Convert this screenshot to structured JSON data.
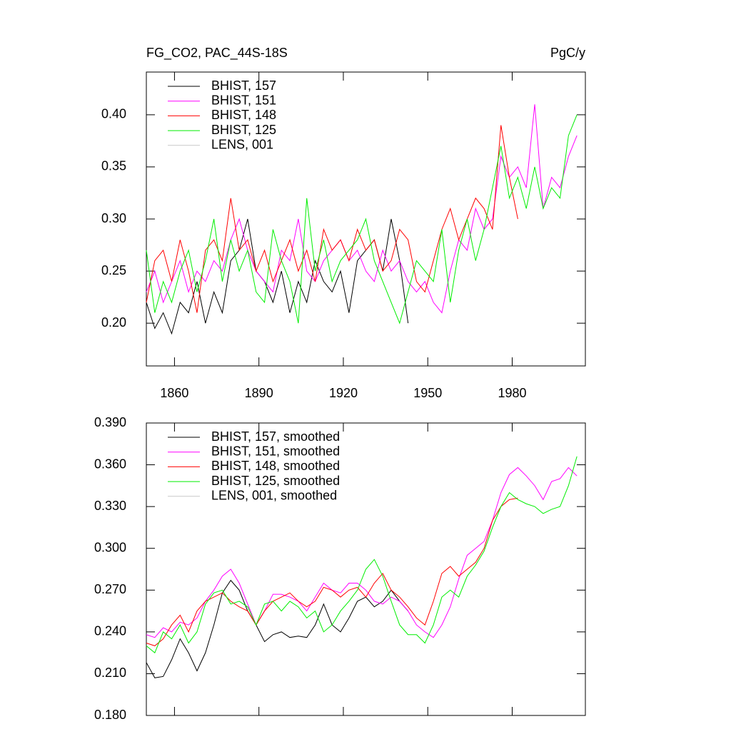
{
  "chart_data": [
    {
      "type": "line",
      "title": "FG_CO2, PAC_44S-18S",
      "units": "PgC/y",
      "x": [
        1850,
        1853,
        1856,
        1859,
        1862,
        1865,
        1868,
        1871,
        1874,
        1877,
        1880,
        1883,
        1886,
        1889,
        1892,
        1895,
        1898,
        1901,
        1904,
        1907,
        1910,
        1913,
        1916,
        1919,
        1922,
        1925,
        1928,
        1931,
        1934,
        1937,
        1940,
        1943,
        1946,
        1949,
        1952,
        1955,
        1958,
        1961,
        1964,
        1967,
        1970,
        1973,
        1976,
        1979,
        1982,
        1985,
        1988,
        1991,
        1994,
        1997,
        2000,
        2003
      ],
      "xlim": [
        1850,
        2006
      ],
      "xticks": [
        1860,
        1890,
        1920,
        1950,
        1980
      ],
      "ylim": [
        0.159,
        0.441
      ],
      "yticks": [
        {
          "value": 0.2,
          "label": "0.20"
        },
        {
          "value": 0.25,
          "label": "0.25"
        },
        {
          "value": 0.3,
          "label": "0.30"
        },
        {
          "value": 0.35,
          "label": "0.35"
        },
        {
          "value": 0.4,
          "label": "0.40"
        }
      ],
      "series": [
        {
          "name": "BHIST, 157",
          "color": "#000000",
          "values": [
            0.22,
            0.195,
            0.21,
            0.19,
            0.22,
            0.21,
            0.24,
            0.2,
            0.23,
            0.21,
            0.26,
            0.27,
            0.3,
            0.25,
            0.24,
            0.22,
            0.25,
            0.21,
            0.24,
            0.22,
            0.26,
            0.24,
            0.23,
            0.25,
            0.21,
            0.26,
            0.27,
            0.28,
            0.25,
            0.3,
            0.26,
            0.2,
            null,
            null,
            null,
            null,
            null,
            null,
            null,
            null,
            null,
            null,
            null,
            null,
            null,
            null,
            null,
            null,
            null,
            null,
            null,
            null
          ]
        },
        {
          "name": "BHIST, 151",
          "color": "#ff00ff",
          "values": [
            0.23,
            0.25,
            0.22,
            0.24,
            0.26,
            0.23,
            0.25,
            0.24,
            0.26,
            0.25,
            0.28,
            0.3,
            0.27,
            0.25,
            0.24,
            0.23,
            0.27,
            0.26,
            0.3,
            0.25,
            0.24,
            0.26,
            0.27,
            0.28,
            0.26,
            0.27,
            0.25,
            0.24,
            0.27,
            0.25,
            0.26,
            0.24,
            0.23,
            0.24,
            0.22,
            0.21,
            0.25,
            0.28,
            0.27,
            0.31,
            0.29,
            0.3,
            0.36,
            0.34,
            0.35,
            0.33,
            0.41,
            0.31,
            0.34,
            0.33,
            0.36,
            0.38
          ]
        },
        {
          "name": "BHIST, 148",
          "color": "#ff0000",
          "values": [
            0.22,
            0.26,
            0.27,
            0.24,
            0.28,
            0.25,
            0.21,
            0.27,
            0.28,
            0.26,
            0.32,
            0.27,
            0.28,
            0.25,
            0.27,
            0.24,
            0.26,
            0.28,
            0.25,
            0.27,
            0.24,
            0.29,
            0.27,
            0.28,
            0.26,
            0.29,
            0.27,
            0.28,
            0.25,
            0.26,
            0.29,
            0.28,
            0.24,
            0.23,
            0.26,
            0.29,
            0.31,
            0.28,
            0.3,
            0.32,
            0.31,
            0.29,
            0.39,
            0.34,
            0.3,
            null,
            null,
            null,
            null,
            null,
            null,
            null
          ]
        },
        {
          "name": "BHIST, 125",
          "color": "#00ee00",
          "values": [
            0.27,
            0.21,
            0.24,
            0.22,
            0.25,
            0.27,
            0.23,
            0.26,
            0.3,
            0.24,
            0.28,
            0.25,
            0.27,
            0.23,
            0.22,
            0.29,
            0.26,
            0.24,
            0.2,
            0.32,
            0.25,
            0.28,
            0.24,
            0.26,
            0.27,
            0.28,
            0.3,
            0.26,
            0.24,
            0.22,
            0.2,
            0.23,
            0.26,
            0.25,
            0.24,
            0.29,
            0.22,
            0.27,
            0.3,
            0.26,
            0.29,
            0.33,
            0.37,
            0.32,
            0.34,
            0.31,
            0.35,
            0.31,
            0.33,
            0.32,
            0.38,
            0.4
          ]
        },
        {
          "name": "LENS, 001",
          "color": "#c8c8c8",
          "values": [
            null,
            null,
            null,
            null,
            null,
            null,
            null,
            null,
            null,
            null,
            null,
            null,
            null,
            null,
            null,
            null,
            null,
            null,
            null,
            null,
            null,
            null,
            null,
            null,
            null,
            null,
            null,
            null,
            null,
            null,
            null,
            null,
            null,
            null,
            null,
            null,
            null,
            null,
            null,
            null,
            null,
            null,
            null,
            null,
            null,
            null,
            null,
            null,
            null,
            null,
            null,
            null
          ]
        }
      ]
    },
    {
      "type": "line",
      "x": [
        1850,
        1853,
        1856,
        1859,
        1862,
        1865,
        1868,
        1871,
        1874,
        1877,
        1880,
        1883,
        1886,
        1889,
        1892,
        1895,
        1898,
        1901,
        1904,
        1907,
        1910,
        1913,
        1916,
        1919,
        1922,
        1925,
        1928,
        1931,
        1934,
        1937,
        1940,
        1943,
        1946,
        1949,
        1952,
        1955,
        1958,
        1961,
        1964,
        1967,
        1970,
        1973,
        1976,
        1979,
        1982,
        1985,
        1988,
        1991,
        1994,
        1997,
        2000,
        2003
      ],
      "xlim": [
        1850,
        2006
      ],
      "xticks": [
        1860,
        1890,
        1920,
        1950,
        1980
      ],
      "ylim": [
        0.18,
        0.39
      ],
      "yticks": [
        {
          "value": 0.18,
          "label": "0.180"
        },
        {
          "value": 0.21,
          "label": "0.210"
        },
        {
          "value": 0.24,
          "label": "0.240"
        },
        {
          "value": 0.27,
          "label": "0.270"
        },
        {
          "value": 0.3,
          "label": "0.300"
        },
        {
          "value": 0.33,
          "label": "0.330"
        },
        {
          "value": 0.36,
          "label": "0.360"
        },
        {
          "value": 0.39,
          "label": "0.390"
        }
      ],
      "series": [
        {
          "name": "BHIST, 157, smoothed",
          "color": "#000000",
          "values": [
            0.218,
            0.207,
            0.208,
            0.22,
            0.235,
            0.225,
            0.212,
            0.225,
            0.245,
            0.268,
            0.277,
            0.27,
            0.255,
            0.245,
            0.233,
            0.238,
            0.24,
            0.236,
            0.237,
            0.236,
            0.245,
            0.26,
            0.245,
            0.24,
            0.25,
            0.262,
            0.265,
            0.258,
            0.262,
            0.27,
            0.262,
            0.255,
            null,
            null,
            null,
            null,
            null,
            null,
            null,
            null,
            null,
            null,
            null,
            null,
            null,
            null,
            null,
            null,
            null,
            null,
            null,
            null
          ]
        },
        {
          "name": "BHIST, 151, smoothed",
          "color": "#ff00ff",
          "values": [
            0.238,
            0.236,
            0.243,
            0.24,
            0.247,
            0.245,
            0.25,
            0.262,
            0.27,
            0.28,
            0.285,
            0.275,
            0.26,
            0.245,
            0.255,
            0.267,
            0.267,
            0.265,
            0.262,
            0.255,
            0.265,
            0.275,
            0.27,
            0.268,
            0.275,
            0.275,
            0.27,
            0.262,
            0.26,
            0.265,
            0.262,
            0.255,
            0.245,
            0.24,
            0.236,
            0.245,
            0.258,
            0.278,
            0.295,
            0.3,
            0.305,
            0.32,
            0.34,
            0.353,
            0.358,
            0.352,
            0.345,
            0.335,
            0.348,
            0.35,
            0.358,
            0.352
          ]
        },
        {
          "name": "BHIST, 148, smoothed",
          "color": "#ff0000",
          "values": [
            0.232,
            0.23,
            0.235,
            0.245,
            0.252,
            0.24,
            0.255,
            0.262,
            0.265,
            0.268,
            0.262,
            0.258,
            0.255,
            0.245,
            0.255,
            0.262,
            0.265,
            0.268,
            0.262,
            0.258,
            0.262,
            0.272,
            0.27,
            0.265,
            0.27,
            0.272,
            0.265,
            0.275,
            0.282,
            0.27,
            0.265,
            0.258,
            0.25,
            0.245,
            0.262,
            0.282,
            0.287,
            0.28,
            0.285,
            0.29,
            0.3,
            0.32,
            0.33,
            0.335,
            0.336,
            null,
            null,
            null,
            null,
            null,
            null,
            null
          ]
        },
        {
          "name": "BHIST, 125, smoothed",
          "color": "#00ee00",
          "values": [
            0.23,
            0.225,
            0.24,
            0.235,
            0.245,
            0.232,
            0.24,
            0.26,
            0.268,
            0.27,
            0.26,
            0.262,
            0.258,
            0.245,
            0.26,
            0.262,
            0.255,
            0.262,
            0.258,
            0.25,
            0.255,
            0.24,
            0.245,
            0.255,
            0.262,
            0.27,
            0.285,
            0.292,
            0.28,
            0.262,
            0.245,
            0.238,
            0.238,
            0.232,
            0.245,
            0.265,
            0.27,
            0.265,
            0.28,
            0.288,
            0.298,
            0.315,
            0.33,
            0.34,
            0.335,
            0.332,
            0.33,
            0.325,
            0.328,
            0.33,
            0.345,
            0.366
          ]
        },
        {
          "name": "LENS, 001, smoothed",
          "color": "#c8c8c8",
          "values": [
            null,
            null,
            null,
            null,
            null,
            null,
            null,
            null,
            null,
            null,
            null,
            null,
            null,
            null,
            null,
            null,
            null,
            null,
            null,
            null,
            null,
            null,
            null,
            null,
            null,
            null,
            null,
            null,
            null,
            null,
            null,
            null,
            null,
            null,
            null,
            null,
            null,
            null,
            null,
            null,
            null,
            null,
            null,
            null,
            null,
            null,
            null,
            null,
            null,
            null,
            null,
            null
          ]
        }
      ]
    }
  ]
}
